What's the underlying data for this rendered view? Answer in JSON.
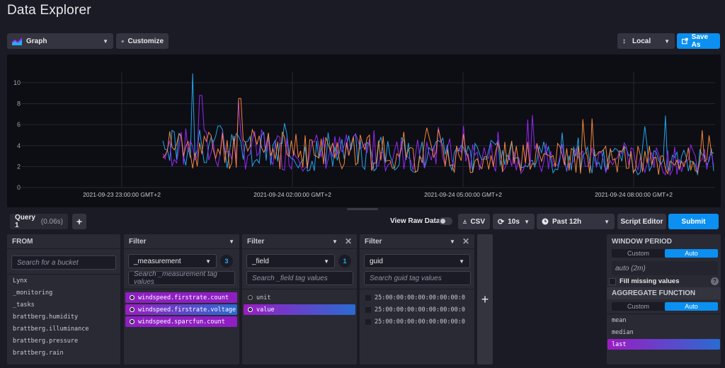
{
  "header": {
    "title": "Data Explorer"
  },
  "toolbar": {
    "graph_type": "Graph",
    "customize_label": "Customize",
    "timezone": "Local",
    "save_as_label": "Save As"
  },
  "chart_data": {
    "type": "line",
    "x_ticks": [
      "2021-09-23 23:00:00 GMT+2",
      "2021-09-24 02:00:00 GMT+2",
      "2021-09-24 05:00:00 GMT+2",
      "2021-09-24 08:00:00 GMT+2"
    ],
    "y_ticks": [
      "0",
      "2",
      "4",
      "6",
      "8",
      "10"
    ],
    "ylim": [
      0,
      11
    ],
    "grid": true,
    "series": [
      {
        "color": "#22adf6",
        "seed": 3,
        "spike": 10.9,
        "spike_at": 0.055
      },
      {
        "color": "#9b2aff",
        "seed": 7,
        "spike": 8.8,
        "spike_at": 0.068
      },
      {
        "color": "#ff8c3a",
        "seed": 11,
        "spike": 8.5,
        "spike_at": 0.14
      }
    ]
  },
  "query_bar": {
    "query_tab": "Query 1",
    "query_time": "(0.06s)",
    "add_label": "+",
    "view_raw_label": "View Raw Data",
    "csv_label": "CSV",
    "refresh_label": "10s",
    "range_label": "Past 12h",
    "script_editor_label": "Script Editor",
    "submit_label": "Submit"
  },
  "from_panel": {
    "title": "FROM",
    "search_placeholder": "Search for a bucket",
    "buckets": [
      "Lynx",
      "_monitoring",
      "_tasks",
      "brattberg.humidity",
      "brattberg.illuminance",
      "brattberg.pressure",
      "brattberg.rain"
    ]
  },
  "filter1": {
    "title": "Filter",
    "key": "_measurement",
    "count": "3",
    "search_placeholder": "Search _measurement tag values",
    "values": [
      "windspeed.firstrate.count",
      "windspeed.firstrate.voltage",
      "windspeed.sparcfun.count"
    ]
  },
  "filter2": {
    "title": "Filter",
    "key": "_field",
    "count": "1",
    "search_placeholder": "Search _field tag values",
    "values": [
      "unit",
      "value"
    ]
  },
  "filter3": {
    "title": "Filter",
    "key": "guid",
    "search_placeholder": "Search guid tag values",
    "values": [
      "25:00:00:00:00:00:00:00:0",
      "25:00:00:00:00:00:00:00:0",
      "25:00:00:00:00:00:00:00:0"
    ]
  },
  "add_filter_label": "+",
  "window_panel": {
    "title": "WINDOW PERIOD",
    "custom_label": "Custom",
    "auto_label": "Auto",
    "period": "auto (2m)",
    "fill_missing": "Fill missing values",
    "help": "?",
    "agg_title": "AGGREGATE FUNCTION",
    "agg_custom": "Custom",
    "agg_auto": "Auto",
    "functions": [
      "mean",
      "median",
      "last"
    ]
  }
}
